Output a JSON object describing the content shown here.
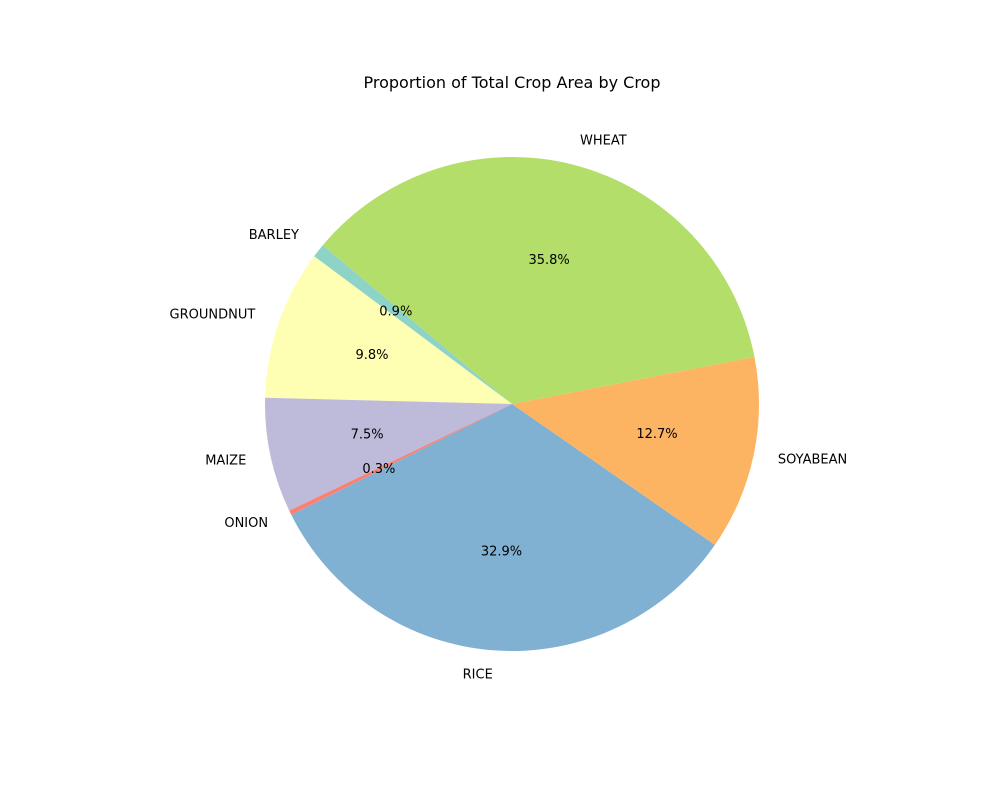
{
  "chart_data": {
    "type": "pie",
    "title": "Proportion of Total Crop Area by Crop",
    "start_angle_deg": 140,
    "direction": "counterclockwise",
    "slices": [
      {
        "label": "BARLEY",
        "percent": 0.9,
        "pct_text": "0.9%",
        "color": "#8dd3c7"
      },
      {
        "label": "GROUNDNUT",
        "percent": 9.8,
        "pct_text": "9.8%",
        "color": "#ffffb3"
      },
      {
        "label": "MAIZE",
        "percent": 7.5,
        "pct_text": "7.5%",
        "color": "#bebada"
      },
      {
        "label": "ONION",
        "percent": 0.3,
        "pct_text": "0.3%",
        "color": "#fb8072"
      },
      {
        "label": "RICE",
        "percent": 32.9,
        "pct_text": "32.9%",
        "color": "#80b1d3"
      },
      {
        "label": "SOYABEAN",
        "percent": 12.7,
        "pct_text": "12.7%",
        "color": "#fdb462"
      },
      {
        "label": "WHEAT",
        "percent": 35.8,
        "pct_text": "35.8%",
        "color": "#b3de69"
      }
    ]
  }
}
